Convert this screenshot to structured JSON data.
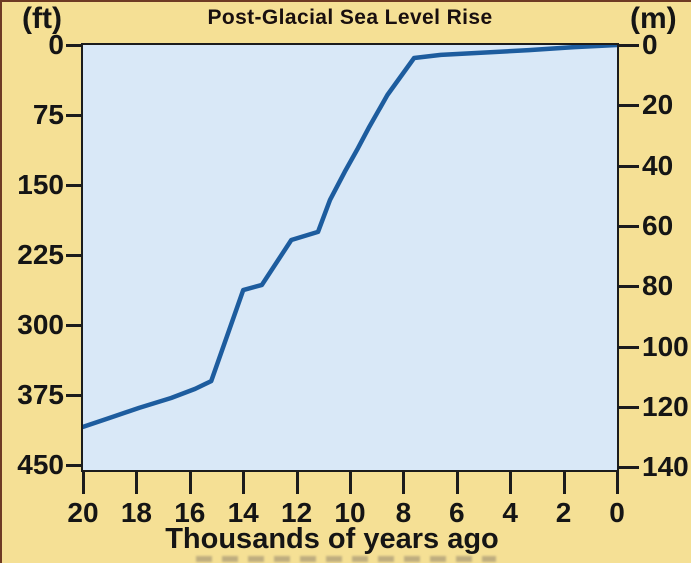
{
  "title": "Post-Glacial Sea Level Rise",
  "y_axis_left": {
    "unit_label": "(ft)",
    "tick_labels": [
      "0",
      "75",
      "150",
      "225",
      "300",
      "375",
      "450"
    ]
  },
  "y_axis_right": {
    "unit_label": "(m)",
    "tick_labels": [
      "0",
      "20",
      "40",
      "60",
      "80",
      "100",
      "120",
      "140"
    ]
  },
  "x_axis": {
    "title": "Thousands of years ago",
    "tick_labels": [
      "20",
      "18",
      "16",
      "14",
      "12",
      "10",
      "8",
      "6",
      "4",
      "2",
      "0"
    ]
  },
  "colors": {
    "background": "#F5E095",
    "plot_background": "#D9E8F7",
    "line": "#1D5C9E",
    "axis": "#1C1C1C",
    "frame_border": "#6E3A24"
  },
  "chart_data": {
    "type": "line",
    "title": "Post-Glacial Sea Level Rise",
    "xlabel": "Thousands of years ago",
    "x_unit": "thousands of years before present",
    "ylabel_left": "(ft)",
    "ylabel_right": "(m)",
    "x_range": [
      20,
      0
    ],
    "y_left_ticks_ft": [
      0,
      75,
      150,
      225,
      300,
      375,
      450
    ],
    "y_right_ticks_m": [
      0,
      20,
      40,
      60,
      80,
      100,
      120,
      140
    ],
    "y_orientation": "depth below present sea level, 0 at top, increasing downward",
    "grid": false,
    "legend": false,
    "series": [
      {
        "name": "Sea level depth below present (m) vs thousands of years ago",
        "points_kya_m": [
          [
            20,
            126.7
          ],
          [
            19,
            123.7
          ],
          [
            17.9,
            120.4
          ],
          [
            16.7,
            117.1
          ],
          [
            15.8,
            114.1
          ],
          [
            15.2,
            111.5
          ],
          [
            14,
            81.3
          ],
          [
            13.3,
            79.6
          ],
          [
            12.2,
            64.7
          ],
          [
            11.2,
            62
          ],
          [
            10.75,
            51.4
          ],
          [
            10.2,
            42.1
          ],
          [
            9.7,
            34.2
          ],
          [
            9.3,
            27.5
          ],
          [
            8.6,
            16.6
          ],
          [
            7.6,
            4.3
          ],
          [
            6.6,
            3.3
          ],
          [
            5.1,
            2.6
          ],
          [
            3.3,
            1.7
          ],
          [
            1.6,
            0.7
          ],
          [
            0,
            0
          ]
        ]
      }
    ]
  }
}
